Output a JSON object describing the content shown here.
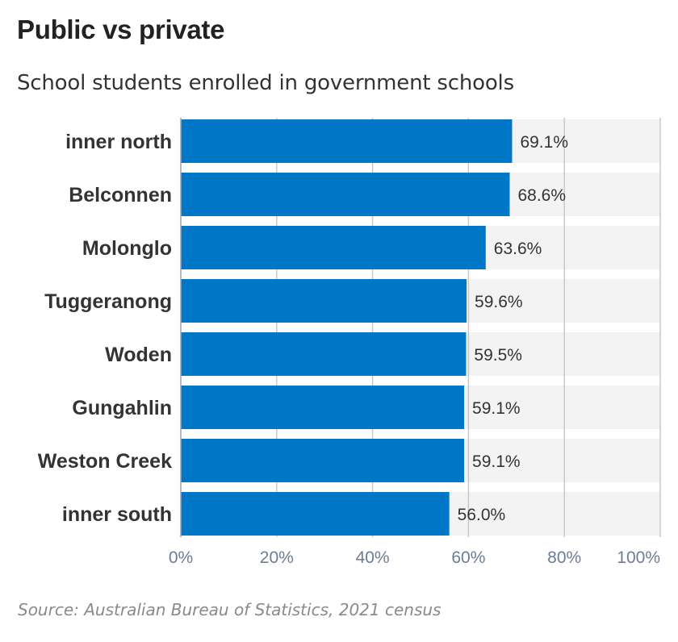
{
  "header": {
    "title": "Public vs private",
    "subtitle": "School students enrolled in government schools"
  },
  "footer": {
    "source": "Source: Australian Bureau of Statistics, 2021  census"
  },
  "chart_data": {
    "type": "bar",
    "orientation": "horizontal",
    "categories": [
      "inner north",
      "Belconnen",
      "Molonglo",
      "Tuggeranong",
      "Woden",
      "Gungahlin",
      "Weston Creek",
      "inner south"
    ],
    "values": [
      69.1,
      68.6,
      63.6,
      59.6,
      59.5,
      59.1,
      59.1,
      56.0
    ],
    "data_labels": [
      "69.1%",
      "68.6%",
      "63.6%",
      "59.6%",
      "59.5%",
      "59.1%",
      "59.1%",
      "56.0%"
    ],
    "xlim": [
      0,
      100
    ],
    "x_ticks": [
      0,
      20,
      40,
      60,
      80,
      100
    ],
    "x_tick_labels": [
      "0%",
      "20%",
      "40%",
      "60%",
      "80%",
      "100%"
    ],
    "grid": true,
    "legend": "none",
    "colors": {
      "bar": "#0177c8",
      "track": "#f3f3f3",
      "grid": "#c9c9c9",
      "category_label": "#333333",
      "value_label": "#333333",
      "tick_label": "#6b7d92"
    }
  }
}
